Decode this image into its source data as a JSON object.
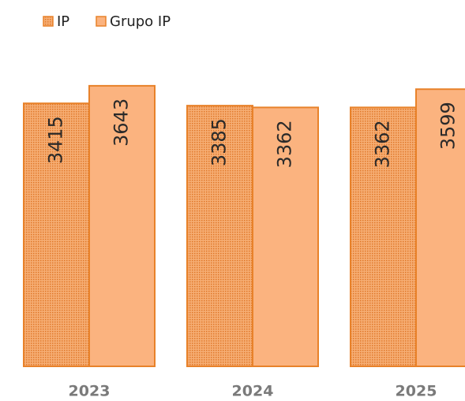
{
  "chart_data": {
    "type": "bar",
    "categories": [
      "2023",
      "2024",
      "2025"
    ],
    "series": [
      {
        "name": "IP",
        "color": "#f4a15f",
        "values": [
          3415,
          3385,
          3362
        ]
      },
      {
        "name": "Grupo IP",
        "color": "#fbb37f",
        "values": [
          3643,
          3362,
          3599
        ]
      }
    ],
    "ylim": [
      0,
      4000
    ]
  }
}
